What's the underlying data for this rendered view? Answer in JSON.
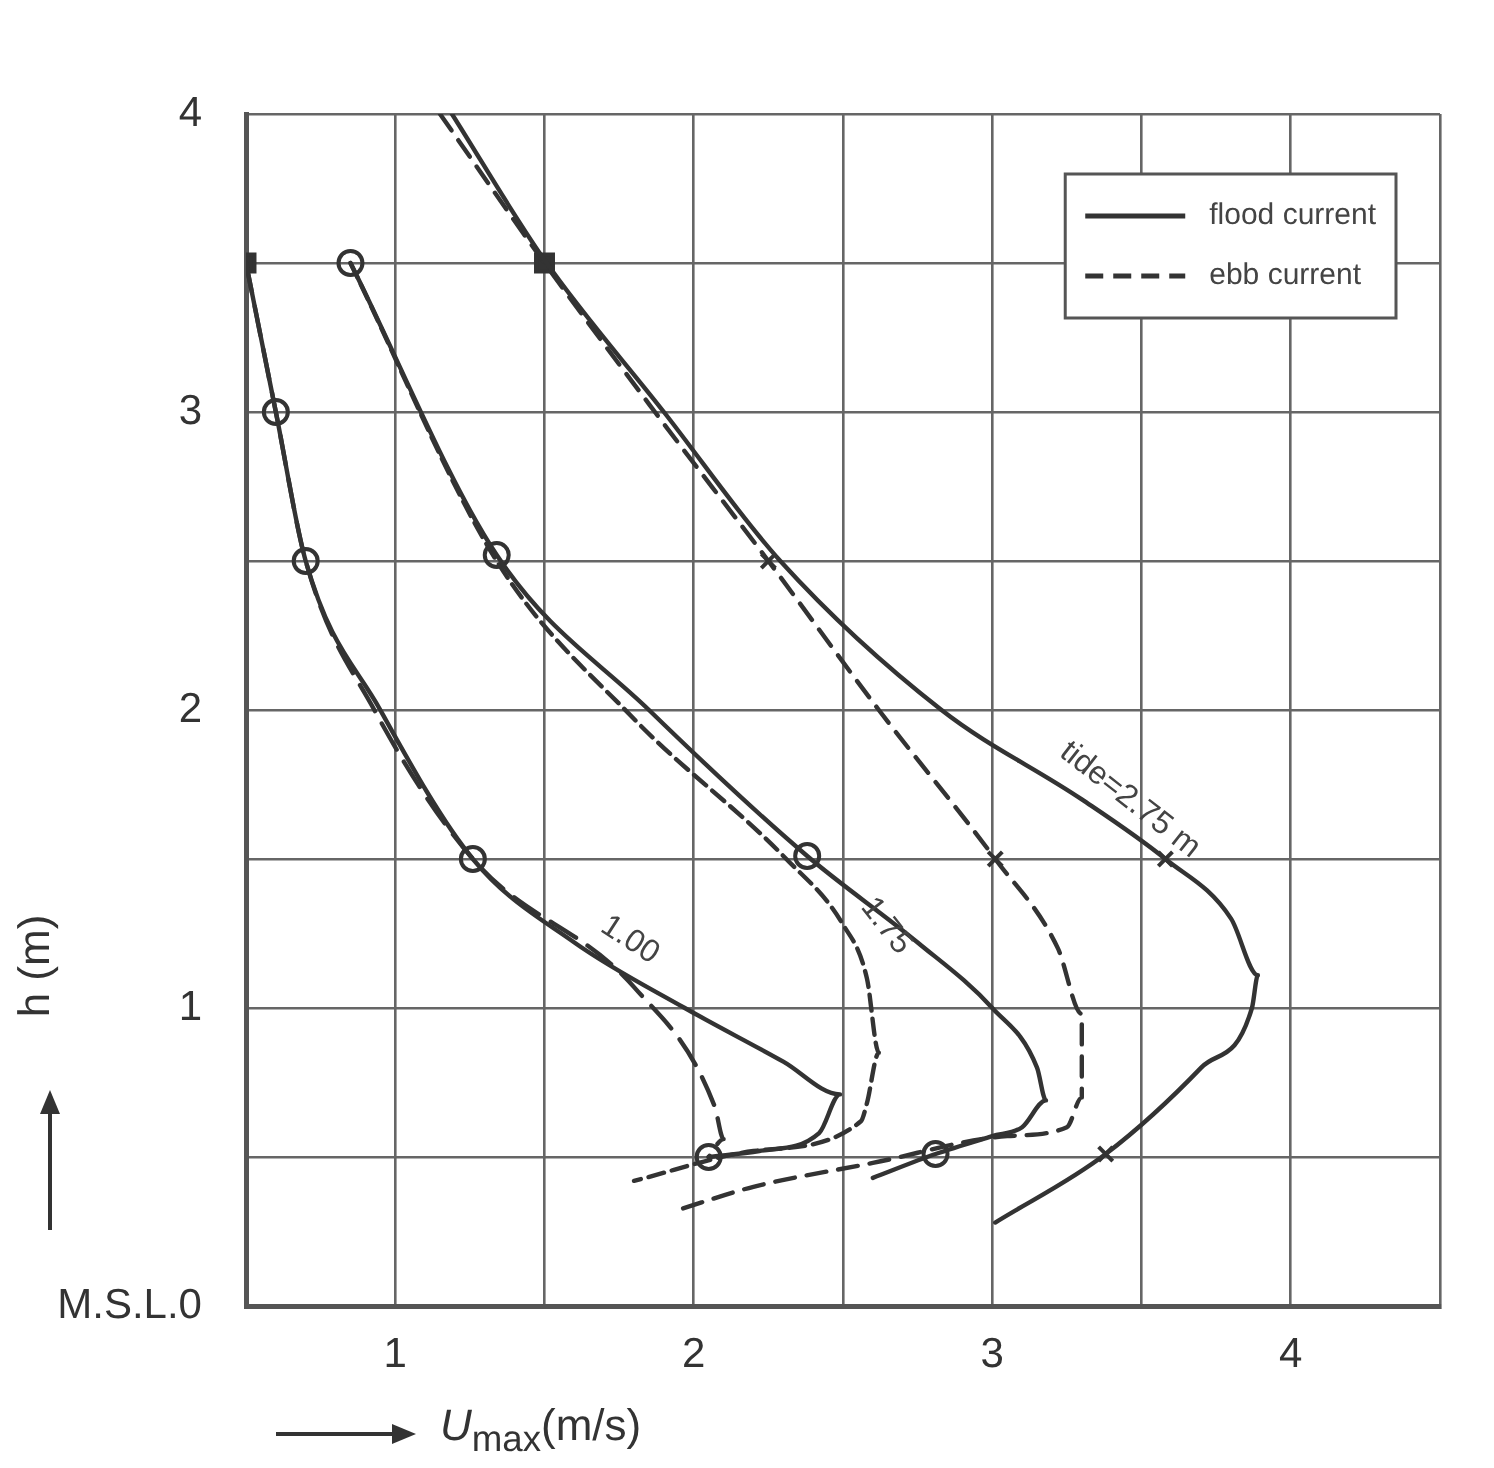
{
  "chart_data": {
    "type": "line",
    "xlabel": "U$_{max}$(m/s)",
    "ylabel": "h (m)",
    "xlim": [
      0.5,
      4.5
    ],
    "ylim": [
      0,
      4
    ],
    "xticks": [
      {
        "value": 0.5,
        "label": null
      },
      1,
      {
        "value": 1.5,
        "label": null
      },
      2,
      {
        "value": 2.5,
        "label": null
      },
      3,
      {
        "value": 3.5,
        "label": null
      },
      4,
      {
        "value": 4.5,
        "label": null
      }
    ],
    "yticks": [
      {
        "value": 0,
        "label": "M.S.L.0"
      },
      {
        "value": 0.5,
        "label": null
      },
      1,
      {
        "value": 1.5,
        "label": null
      },
      2,
      {
        "value": 2.5,
        "label": null
      },
      3,
      {
        "value": 3.5,
        "label": null
      },
      4
    ],
    "grid": true,
    "legend": "top right",
    "marker": "none",
    "series": [
      {
        "name": "flood current",
        "type": "line",
        "color": "#333333",
        "line_style": "solid",
        "x": [
          0.5,
          0.6,
          0.7,
          0.95,
          1.26,
          1.6,
          1.97,
          2.3,
          2.49,
          2.42,
          2.22,
          2.05
        ],
        "values": [
          3.5,
          3.0,
          2.5,
          2.0,
          1.5,
          1.22,
          1.0,
          0.82,
          0.71,
          0.58,
          0.52,
          0.5
        ]
      },
      {
        "name": "ebb current",
        "type": "line",
        "color": "#333333",
        "line_style": "dashed",
        "x": [
          0.5,
          0.6,
          0.7,
          0.93,
          1.26,
          1.8,
          2.07,
          2.1,
          2.05
        ],
        "values": [
          3.5,
          3.0,
          2.5,
          2.0,
          1.5,
          1.07,
          0.67,
          0.56,
          0.5
        ]
      },
      {
        "type": "line",
        "color": "#333333",
        "line_style": "solid",
        "x": [
          0.85,
          1.34,
          1.85,
          2.38,
          2.75,
          3.0,
          3.15,
          3.18,
          3.1,
          3.0,
          2.81,
          2.6
        ],
        "values": [
          3.5,
          2.52,
          2.0,
          1.51,
          1.22,
          1.0,
          0.8,
          0.69,
          0.6,
          0.57,
          0.51,
          0.43
        ]
      },
      {
        "type": "line",
        "color": "#333333",
        "line_style": "dashed",
        "x": [
          0.85,
          1.34,
          1.8,
          2.31,
          2.5,
          2.58,
          2.62,
          2.58,
          2.56,
          2.2,
          1.8
        ],
        "values": [
          3.5,
          2.5,
          1.97,
          1.5,
          1.28,
          1.1,
          0.85,
          0.68,
          0.62,
          0.52,
          0.42
        ]
      },
      {
        "type": "line",
        "color": "#333333",
        "line_style": "solid",
        "x": [
          1.19,
          1.5,
          1.9,
          2.29,
          2.83,
          3.3,
          3.58,
          3.8,
          3.89,
          3.87,
          3.7,
          3.38,
          3.01
        ],
        "values": [
          4.0,
          3.51,
          3.0,
          2.5,
          2.0,
          1.7,
          1.5,
          1.3,
          1.11,
          1.0,
          0.8,
          0.51,
          0.28
        ]
      },
      {
        "type": "line",
        "color": "#333333",
        "line_style": "dashed",
        "x": [
          1.15,
          1.5,
          1.87,
          2.25,
          2.62,
          3.01,
          3.22,
          3.3,
          3.3,
          3.25,
          3.05,
          2.6,
          2.2,
          1.94
        ],
        "values": [
          4.0,
          3.5,
          3.0,
          2.5,
          2.0,
          1.5,
          1.2,
          0.98,
          0.7,
          0.6,
          0.57,
          0.48,
          0.4,
          0.32
        ]
      },
      {
        "type": "scatter",
        "color": "#333333",
        "marker": "circle",
        "x": [
          0.6,
          0.7,
          1.26,
          2.05,
          0.85,
          1.34,
          2.38,
          2.81
        ],
        "values": [
          3.0,
          2.5,
          1.5,
          0.5,
          3.5,
          2.52,
          1.51,
          0.51
        ]
      },
      {
        "type": "scatter",
        "color": "#333333",
        "marker": "square",
        "x": [
          0.5,
          1.5
        ],
        "values": [
          3.5,
          3.5
        ]
      },
      {
        "type": "scatter",
        "color": "#333333",
        "marker": "cross",
        "x": [
          2.25,
          3.58,
          3.01,
          3.38
        ],
        "values": [
          2.5,
          1.5,
          1.5,
          0.51
        ]
      }
    ],
    "annotations": [
      "1.00",
      "1.75",
      "tide=2.75 m"
    ]
  }
}
